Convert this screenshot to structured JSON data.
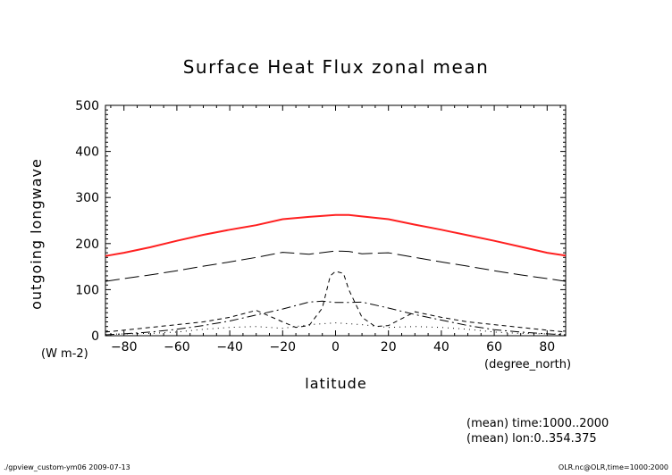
{
  "chart_data": {
    "type": "line",
    "title": "Surface Heat Flux zonal mean",
    "xlabel": "latitude",
    "ylabel": "outgoing longwave",
    "x_unit": "(degree_north)",
    "y_unit": "(W m-2)",
    "xlim": [
      -87,
      87
    ],
    "ylim": [
      0,
      500
    ],
    "x_ticks": [
      -80,
      -60,
      -40,
      -20,
      0,
      20,
      40,
      60,
      80
    ],
    "y_ticks": [
      0,
      100,
      200,
      300,
      400,
      500
    ],
    "grid": false,
    "annotations": [
      "(mean) time:1000..2000",
      "(mean) lon:0..354.375"
    ],
    "footer_left": "./gpview_custom-ym06  2009-07-13",
    "footer_right": "OLR.nc@OLR,time=1000:2000",
    "series": [
      {
        "color": "#ff2020",
        "dash": "solid",
        "x": [
          -87,
          -80,
          -70,
          -60,
          -50,
          -40,
          -30,
          -20,
          -10,
          0,
          5,
          10,
          20,
          30,
          40,
          50,
          60,
          70,
          80,
          87
        ],
        "y": [
          173,
          180,
          192,
          206,
          219,
          230,
          240,
          253,
          258,
          262,
          262,
          259,
          253,
          241,
          230,
          218,
          206,
          193,
          180,
          174
        ]
      },
      {
        "color": "#000000",
        "dash": "long",
        "x": [
          -87,
          -80,
          -70,
          -60,
          -50,
          -40,
          -30,
          -20,
          -10,
          0,
          5,
          10,
          20,
          30,
          40,
          50,
          60,
          70,
          80,
          87
        ],
        "y": [
          118,
          124,
          132,
          141,
          151,
          160,
          170,
          181,
          177,
          184,
          183,
          178,
          180,
          170,
          160,
          151,
          141,
          132,
          124,
          118
        ]
      },
      {
        "color": "#000000",
        "dash": "dashdot",
        "x": [
          -87,
          -80,
          -70,
          -60,
          -50,
          -40,
          -30,
          -20,
          -10,
          -5,
          0,
          5,
          10,
          20,
          30,
          40,
          50,
          60,
          70,
          80,
          87
        ],
        "y": [
          2,
          4,
          8,
          14,
          22,
          32,
          45,
          58,
          73,
          75,
          72,
          72,
          73,
          60,
          46,
          34,
          22,
          13,
          8,
          4,
          2
        ]
      },
      {
        "color": "#000000",
        "dash": "shortdash",
        "x": [
          -87,
          -80,
          -70,
          -60,
          -50,
          -40,
          -30,
          -20,
          -15,
          -10,
          -5,
          -2,
          0,
          3,
          5,
          10,
          15,
          20,
          30,
          40,
          50,
          60,
          70,
          80,
          87
        ],
        "y": [
          8,
          12,
          18,
          24,
          30,
          40,
          55,
          30,
          18,
          22,
          60,
          130,
          140,
          135,
          100,
          40,
          20,
          22,
          52,
          40,
          30,
          24,
          18,
          12,
          8
        ]
      },
      {
        "color": "#000000",
        "dash": "dotted",
        "x": [
          -87,
          -80,
          -70,
          -60,
          -50,
          -40,
          -30,
          -20,
          -10,
          0,
          10,
          20,
          30,
          40,
          50,
          60,
          70,
          80,
          87
        ],
        "y": [
          3,
          4,
          5,
          8,
          14,
          18,
          20,
          16,
          24,
          28,
          24,
          18,
          20,
          18,
          14,
          8,
          5,
          4,
          3
        ]
      }
    ]
  }
}
